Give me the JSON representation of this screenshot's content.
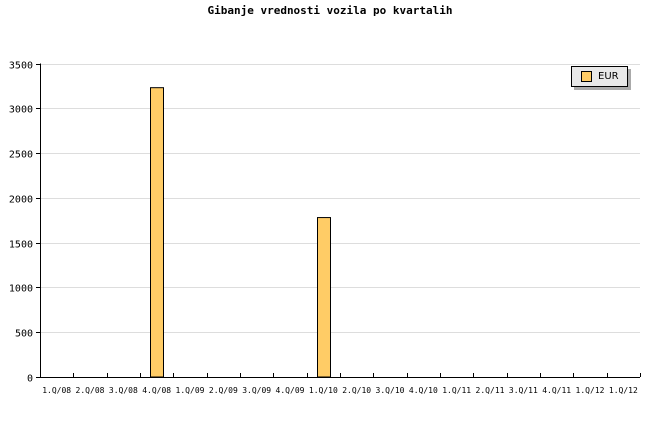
{
  "chart_data": {
    "type": "bar",
    "title": "Gibanje vrednosti vozila po kvartalih",
    "xlabel": "",
    "ylabel": "",
    "categories": [
      "1.Q/08",
      "2.Q/08",
      "3.Q/08",
      "4.Q/08",
      "1.Q/09",
      "2.Q/09",
      "3.Q/09",
      "4.Q/09",
      "1.Q/10",
      "2.Q/10",
      "3.Q/10",
      "4.Q/10",
      "1.Q/11",
      "2.Q/11",
      "3.Q/11",
      "4.Q/11",
      "1.Q/12",
      "1.Q/12"
    ],
    "series": [
      {
        "name": "EUR",
        "color": "#ffcc66",
        "values": [
          0,
          0,
          0,
          3230,
          0,
          0,
          0,
          0,
          1780,
          0,
          0,
          0,
          0,
          0,
          0,
          0,
          0,
          0
        ]
      }
    ],
    "ylim": [
      0,
      3500
    ],
    "yticks": [
      0,
      500,
      1000,
      1500,
      2000,
      2500,
      3000,
      3500
    ],
    "grid": true,
    "legend_position": "top-right"
  }
}
